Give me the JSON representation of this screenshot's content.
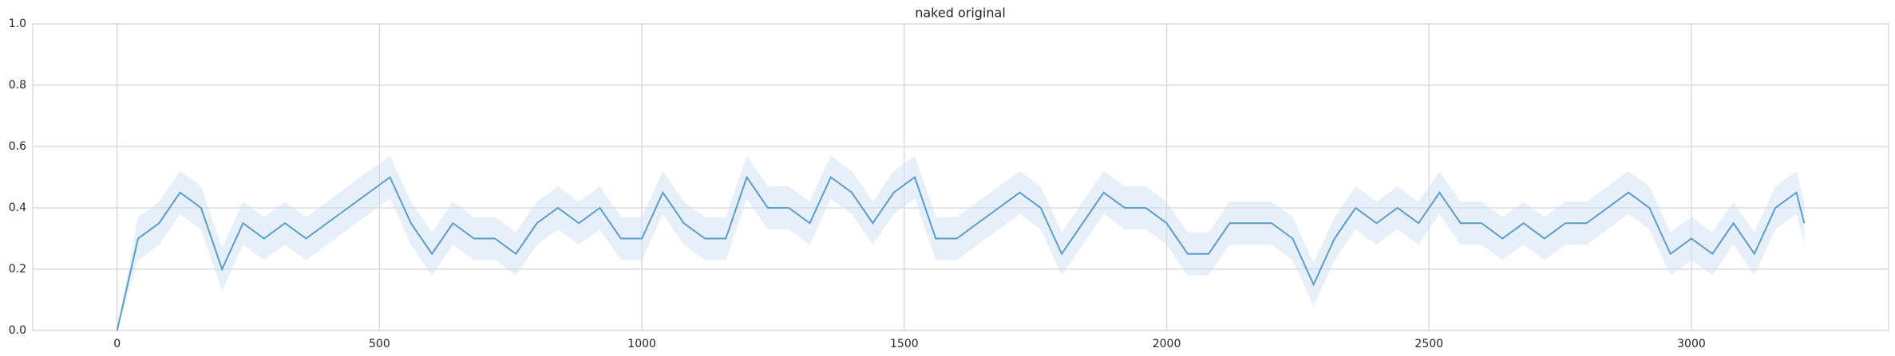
{
  "chart_data": {
    "type": "line",
    "title": "naked original",
    "color": "#5a9dc9",
    "band_color": "#c9def2",
    "grid": true,
    "x": [
      0,
      40,
      80,
      120,
      160,
      200,
      240,
      280,
      320,
      360,
      400,
      440,
      480,
      520,
      560,
      600,
      640,
      680,
      720,
      760,
      800,
      840,
      880,
      920,
      960,
      1000,
      1040,
      1080,
      1120,
      1160,
      1200,
      1240,
      1280,
      1320,
      1360,
      1400,
      1440,
      1480,
      1520,
      1560,
      1600,
      1640,
      1680,
      1720,
      1760,
      1800,
      1840,
      1880,
      1920,
      1960,
      2000,
      2040,
      2080,
      2120,
      2160,
      2200,
      2240,
      2280,
      2320,
      2360,
      2400,
      2440,
      2480,
      2520,
      2560,
      2600,
      2640,
      2680,
      2720,
      2760,
      2800,
      2840,
      2880,
      2920,
      2960,
      3000,
      3040,
      3080,
      3120,
      3160,
      3200,
      3215
    ],
    "values": [
      0,
      0.3,
      0.35,
      0.45,
      0.4,
      0.2,
      0.35,
      0.3,
      0.35,
      0.3,
      0.35,
      0.4,
      0.45,
      0.5,
      0.35,
      0.25,
      0.35,
      0.3,
      0.3,
      0.25,
      0.35,
      0.4,
      0.35,
      0.4,
      0.3,
      0.3,
      0.45,
      0.35,
      0.3,
      0.3,
      0.5,
      0.4,
      0.4,
      0.35,
      0.5,
      0.45,
      0.35,
      0.45,
      0.5,
      0.3,
      0.3,
      0.35,
      0.4,
      0.45,
      0.4,
      0.25,
      0.35,
      0.45,
      0.4,
      0.4,
      0.35,
      0.25,
      0.25,
      0.35,
      0.35,
      0.35,
      0.3,
      0.15,
      0.3,
      0.4,
      0.35,
      0.4,
      0.35,
      0.45,
      0.35,
      0.35,
      0.3,
      0.35,
      0.3,
      0.35,
      0.35,
      0.4,
      0.45,
      0.4,
      0.25,
      0.3,
      0.25,
      0.35,
      0.25,
      0.4,
      0.45,
      0.35
    ],
    "lower": [
      0,
      0.23,
      0.28,
      0.38,
      0.33,
      0.13,
      0.28,
      0.23,
      0.28,
      0.23,
      0.28,
      0.33,
      0.38,
      0.43,
      0.28,
      0.18,
      0.28,
      0.23,
      0.23,
      0.18,
      0.28,
      0.33,
      0.28,
      0.33,
      0.23,
      0.23,
      0.38,
      0.28,
      0.23,
      0.23,
      0.43,
      0.33,
      0.33,
      0.28,
      0.43,
      0.38,
      0.28,
      0.38,
      0.43,
      0.23,
      0.23,
      0.28,
      0.33,
      0.38,
      0.33,
      0.18,
      0.28,
      0.38,
      0.33,
      0.33,
      0.28,
      0.18,
      0.18,
      0.28,
      0.28,
      0.28,
      0.23,
      0.08,
      0.23,
      0.33,
      0.28,
      0.33,
      0.28,
      0.38,
      0.28,
      0.28,
      0.23,
      0.28,
      0.23,
      0.28,
      0.28,
      0.33,
      0.38,
      0.33,
      0.18,
      0.23,
      0.18,
      0.28,
      0.18,
      0.33,
      0.38,
      0.28
    ],
    "upper": [
      0,
      0.37,
      0.42,
      0.52,
      0.47,
      0.27,
      0.42,
      0.37,
      0.42,
      0.37,
      0.42,
      0.47,
      0.52,
      0.57,
      0.42,
      0.32,
      0.42,
      0.37,
      0.37,
      0.32,
      0.42,
      0.47,
      0.42,
      0.47,
      0.37,
      0.37,
      0.52,
      0.42,
      0.37,
      0.37,
      0.57,
      0.47,
      0.47,
      0.42,
      0.57,
      0.52,
      0.42,
      0.52,
      0.57,
      0.37,
      0.37,
      0.42,
      0.47,
      0.52,
      0.47,
      0.32,
      0.42,
      0.52,
      0.47,
      0.47,
      0.42,
      0.32,
      0.32,
      0.42,
      0.42,
      0.42,
      0.37,
      0.22,
      0.37,
      0.47,
      0.42,
      0.47,
      0.42,
      0.52,
      0.42,
      0.42,
      0.37,
      0.42,
      0.37,
      0.42,
      0.42,
      0.47,
      0.52,
      0.47,
      0.32,
      0.37,
      0.32,
      0.42,
      0.32,
      0.47,
      0.52,
      0.42
    ],
    "xlim": [
      -160.75,
      3375.75
    ],
    "xticks": [
      0,
      500,
      1000,
      1500,
      2000,
      2500,
      3000
    ],
    "ylim": [
      0,
      1
    ],
    "yticks": [
      {
        "value": 0,
        "label": "0.0"
      },
      0.2,
      0.4,
      0.6,
      0.8,
      {
        "value": 1,
        "label": "1.0"
      }
    ]
  }
}
